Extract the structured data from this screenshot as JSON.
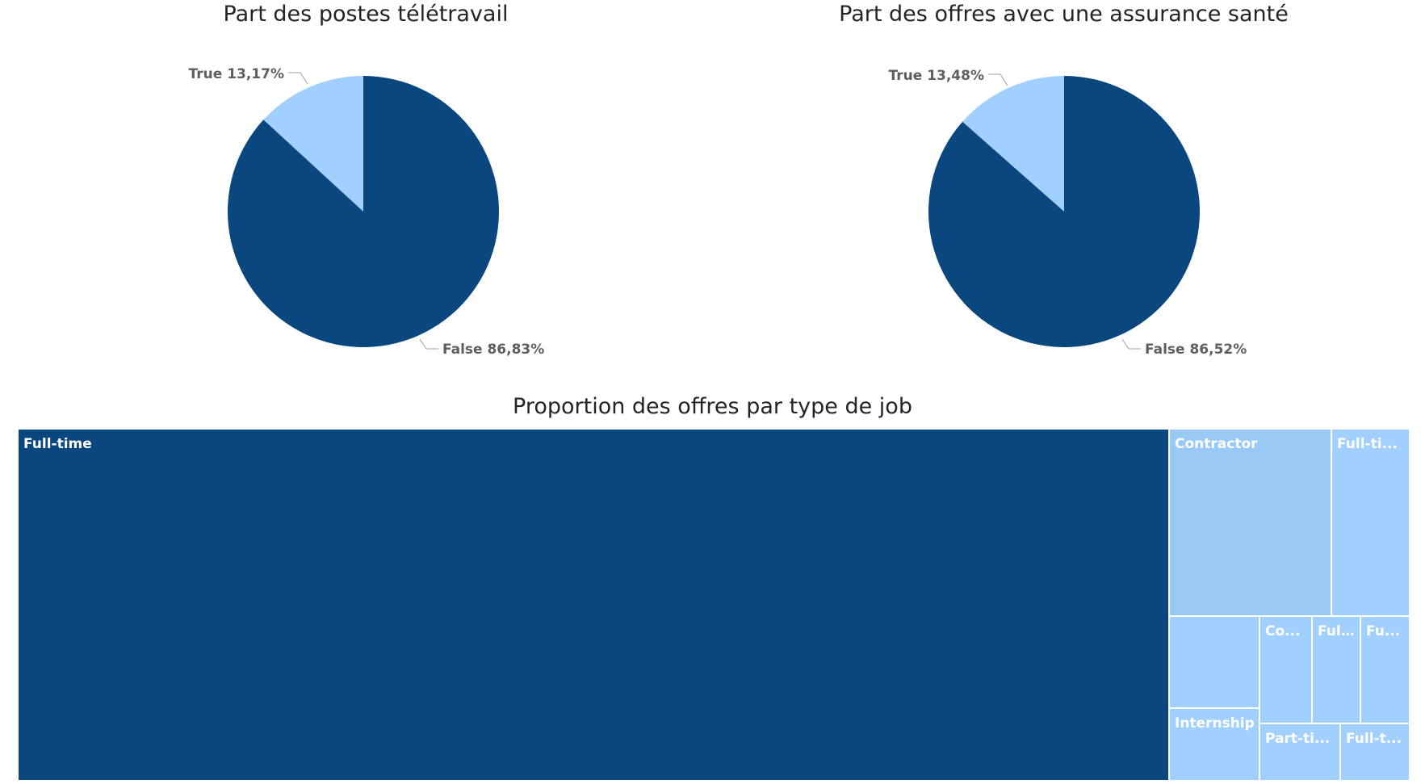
{
  "colors": {
    "dark": "#0a477e",
    "light": "#a1d0ff",
    "light2": "#99caf6"
  },
  "chart_data": [
    {
      "type": "pie",
      "title": "Part des postes télétravail",
      "slices": [
        {
          "label": "True",
          "value": 13.17,
          "display": "True 13,17%",
          "color": "#a1d0ff"
        },
        {
          "label": "False",
          "value": 86.83,
          "display": "False 86,83%",
          "color": "#0a477e"
        }
      ]
    },
    {
      "type": "pie",
      "title": "Part des offres avec une assurance santé",
      "slices": [
        {
          "label": "True",
          "value": 13.48,
          "display": "True 13,48%",
          "color": "#a1d0ff"
        },
        {
          "label": "False",
          "value": 86.52,
          "display": "False 86,52%",
          "color": "#0a477e"
        }
      ]
    },
    {
      "type": "treemap",
      "title": "Proporti­on des offres par type de job",
      "tiles": [
        {
          "label": "Full-time",
          "color": "#0a477e"
        },
        {
          "label": "Contractor",
          "color": "#99caf6"
        },
        {
          "label": "Full-ti...",
          "color": "#a1d0ff"
        },
        {
          "label": "",
          "color": "#a1d0ff"
        },
        {
          "label": "Internship",
          "color": "#a1d0ff"
        },
        {
          "label": "Co...",
          "color": "#a1d0ff"
        },
        {
          "label": "Ful...",
          "color": "#a1d0ff"
        },
        {
          "label": "Fu...",
          "color": "#a1d0ff"
        },
        {
          "label": "Part-ti...",
          "color": "#a1d0ff"
        },
        {
          "label": "Full-t...",
          "color": "#a1d0ff"
        }
      ]
    }
  ]
}
